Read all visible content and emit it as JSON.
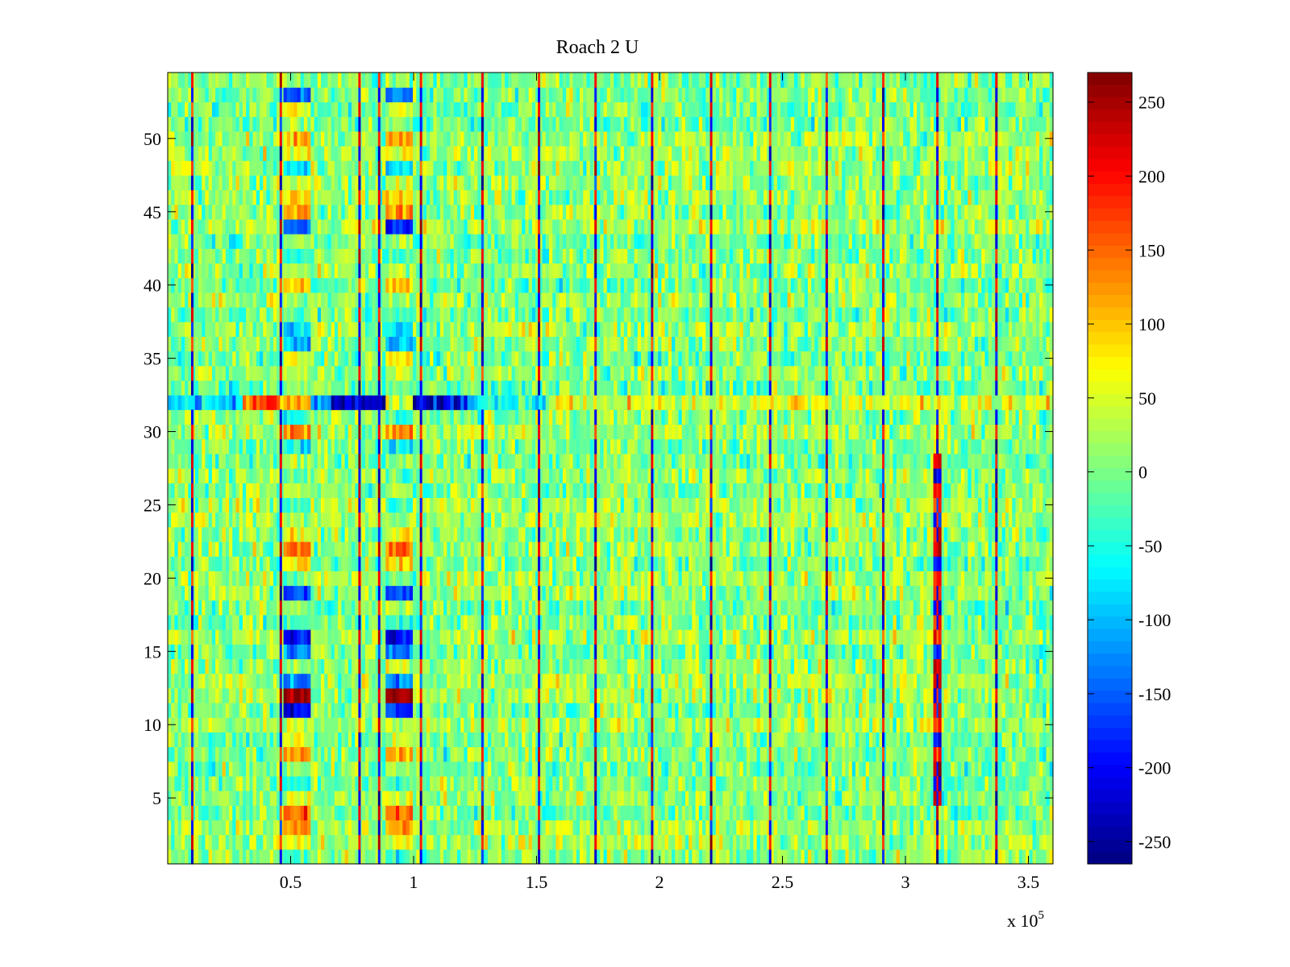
{
  "chart_data": {
    "type": "heatmap",
    "title": "Roach 2 U",
    "xlabel": "",
    "ylabel": "",
    "x_exponent_label": "x 10",
    "x_exponent_power": "5",
    "xlim": [
      0,
      3.6
    ],
    "ylim": [
      0.5,
      54.5
    ],
    "x_ticks": [
      0.5,
      1,
      1.5,
      2,
      2.5,
      3,
      3.5
    ],
    "x_tick_labels": [
      "0.5",
      "1",
      "1.5",
      "2",
      "2.5",
      "3",
      "3.5"
    ],
    "y_ticks": [
      5,
      10,
      15,
      20,
      25,
      30,
      35,
      40,
      45,
      50
    ],
    "y_tick_labels": [
      "5",
      "10",
      "15",
      "20",
      "25",
      "30",
      "35",
      "40",
      "45",
      "50"
    ],
    "rows": 54,
    "colorbar": {
      "colormap": "jet",
      "range": [
        -265,
        270
      ],
      "ticks": [
        250,
        200,
        150,
        100,
        50,
        0,
        -50,
        -100,
        -150,
        -200,
        -250
      ],
      "tick_labels": [
        "250",
        "200",
        "150",
        "100",
        "50",
        "0",
        "-50",
        "-100",
        "-150",
        "-200",
        "-250"
      ]
    },
    "features": {
      "spike_columns_x": [
        0.1,
        0.46,
        0.78,
        0.86,
        1.03,
        1.28,
        1.51,
        1.74,
        1.97,
        2.21,
        2.45,
        2.68,
        2.91,
        3.13,
        3.37
      ],
      "row_32_segments": [
        {
          "x0": 0.0,
          "x1": 0.3,
          "value": -80
        },
        {
          "x0": 0.3,
          "x1": 0.46,
          "value": 180
        },
        {
          "x0": 0.46,
          "x1": 0.58,
          "value": 110
        },
        {
          "x0": 0.58,
          "x1": 0.66,
          "value": -110
        },
        {
          "x0": 0.66,
          "x1": 0.89,
          "value": -230
        },
        {
          "x0": 0.89,
          "x1": 1.0,
          "value": 60
        },
        {
          "x0": 1.0,
          "x1": 1.22,
          "value": -215
        },
        {
          "x0": 1.22,
          "x1": 1.55,
          "value": -50
        },
        {
          "x0": 1.55,
          "x1": 3.6,
          "value": 50
        }
      ],
      "block_bands": [
        {
          "x0": 0.47,
          "x1": 0.58
        },
        {
          "x0": 0.89,
          "x1": 0.99
        }
      ],
      "block_rows": {
        "53": -140,
        "52": 70,
        "51": 20,
        "50": 110,
        "49": 60,
        "48": -80,
        "47": 40,
        "46": 90,
        "45": 120,
        "44": -170,
        "43": 20,
        "42": -40,
        "41": 30,
        "40": 90,
        "39": 20,
        "38": -20,
        "37": -90,
        "36": -110,
        "35": 70,
        "34": 30,
        "31": -40,
        "30": 140,
        "29": -70,
        "28": 20,
        "27": -20,
        "26": 30,
        "25": -30,
        "24": 20,
        "23": 60,
        "22": 140,
        "21": 90,
        "20": -20,
        "19": -160,
        "18": 30,
        "17": -30,
        "16": -200,
        "15": -140,
        "14": 40,
        "13": -120,
        "12": 250,
        "11": -190,
        "10": 30,
        "9": 40,
        "8": 110,
        "7": 20,
        "6": -30,
        "5": 40,
        "4": 150,
        "3": 120,
        "2": 60,
        "1": -40
      },
      "late_column_x": [
        3.12,
        3.14
      ]
    }
  }
}
